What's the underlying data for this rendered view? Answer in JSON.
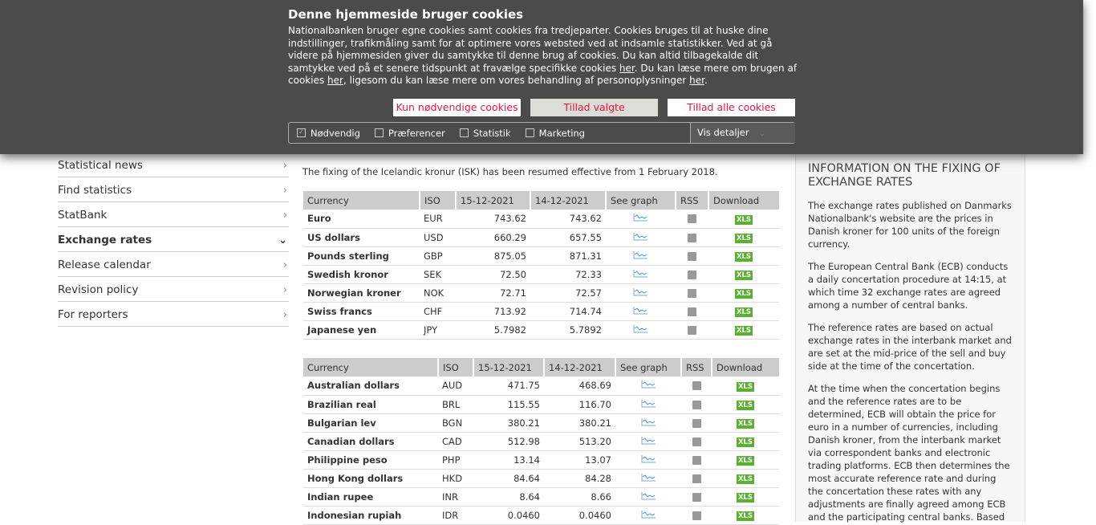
{
  "cookie_banner": {
    "title": "Denne hjemmeside bruger cookies",
    "text_1": "Nationalbanken bruger egne cookies samt cookies fra tredjeparter. Cookies bruges til at huske dine indstillinger, trafikmåling samt for at optimere vores websted ved at indsamle statistikker.  Ved at gå videre på hjemmesiden giver du samtykke til denne brug af cookies.  Du kan altid tilbagekalde dit samtykke ved på et senere tidspunkt at fravælge specifikke cookies ",
    "link_1": "her",
    "text_2": ". Du kan læse mere om brugen af cookies ",
    "link_2": "her",
    "text_3": ", ligesom du kan læse mere om vores behandling af personoplysninger ",
    "link_3": "her",
    "text_4": ".",
    "buttons": {
      "necessary": "Kun nødvendige cookies",
      "selected": "Tillad valgte",
      "all": "Tillad alle cookies"
    },
    "checkboxes": [
      {
        "label": "Nødvendig",
        "checked": true
      },
      {
        "label": "Præferencer",
        "checked": false
      },
      {
        "label": "Statistik",
        "checked": false
      },
      {
        "label": "Marketing",
        "checked": false
      }
    ],
    "details": "Vis detaljer"
  },
  "sidebar": {
    "items": [
      {
        "label": "Statistical news"
      },
      {
        "label": "Find statistics"
      },
      {
        "label": "StatBank"
      },
      {
        "label": "Exchange rates",
        "active": true
      },
      {
        "label": "Release calendar"
      },
      {
        "label": "Revision policy"
      },
      {
        "label": "For reporters"
      }
    ]
  },
  "main": {
    "intro": "The fixing of the Icelandic kronur (ISK) has been resumed effective from 1 February 2018.",
    "headers": [
      "Currency",
      "ISO",
      "15-12-2021",
      "14-12-2021",
      "See graph",
      "RSS",
      "Download"
    ],
    "download_label": "XLS",
    "table1": [
      [
        "Euro",
        "EUR",
        "743.62",
        "743.62"
      ],
      [
        "US dollars",
        "USD",
        "660.29",
        "657.55"
      ],
      [
        "Pounds sterling",
        "GBP",
        "875.05",
        "871.31"
      ],
      [
        "Swedish kronor",
        "SEK",
        "72.50",
        "72.33"
      ],
      [
        "Norwegian kroner",
        "NOK",
        "72.71",
        "72.57"
      ],
      [
        "Swiss francs",
        "CHF",
        "713.92",
        "714.74"
      ],
      [
        "Japanese yen",
        "JPY",
        "5.7982",
        "5.7892"
      ]
    ],
    "table2": [
      [
        "Australian dollars",
        "AUD",
        "471.75",
        "468.69"
      ],
      [
        "Brazilian real",
        "BRL",
        "115.55",
        "116.70"
      ],
      [
        "Bulgarian lev",
        "BGN",
        "380.21",
        "380.21"
      ],
      [
        "Canadian dollars",
        "CAD",
        "512.98",
        "513.20"
      ],
      [
        "Philippine peso",
        "PHP",
        "13.14",
        "13.07"
      ],
      [
        "Hong Kong dollars",
        "HKD",
        "84.64",
        "84.28"
      ],
      [
        "Indian rupee",
        "INR",
        "8.64",
        "8.66"
      ],
      [
        "Indonesian rupiah",
        "IDR",
        "0.0460",
        "0.0460"
      ]
    ]
  },
  "info": {
    "title": "INFORMATION ON THE FIXING OF EXCHANGE RATES",
    "paragraphs": [
      "The exchange rates published on Danmarks Nationalbank's website are the prices in Danish kroner for 100 units of the foreign currency.",
      "The European Central Bank (ECB) conducts a daily concertation procedure at 14:15, at which time 32 exchange rates are agreed among a number of central banks.",
      "The reference rates are based on actual exchange rates in the interbank market and are set at the mid-price of the sell and buy side at the time of the concertation.",
      "At the time when the concertation begins and the reference rates are to be determined, ECB will obtain the price for euro in a number of currencies, including Danish kroner, from the interbank market via correspondent banks and electronic trading platforms. ECB then determines the most accurate reference rate and during the concertation these rates with any adjustments are finally agreed among ECB and the participating central banks. Based"
    ]
  }
}
